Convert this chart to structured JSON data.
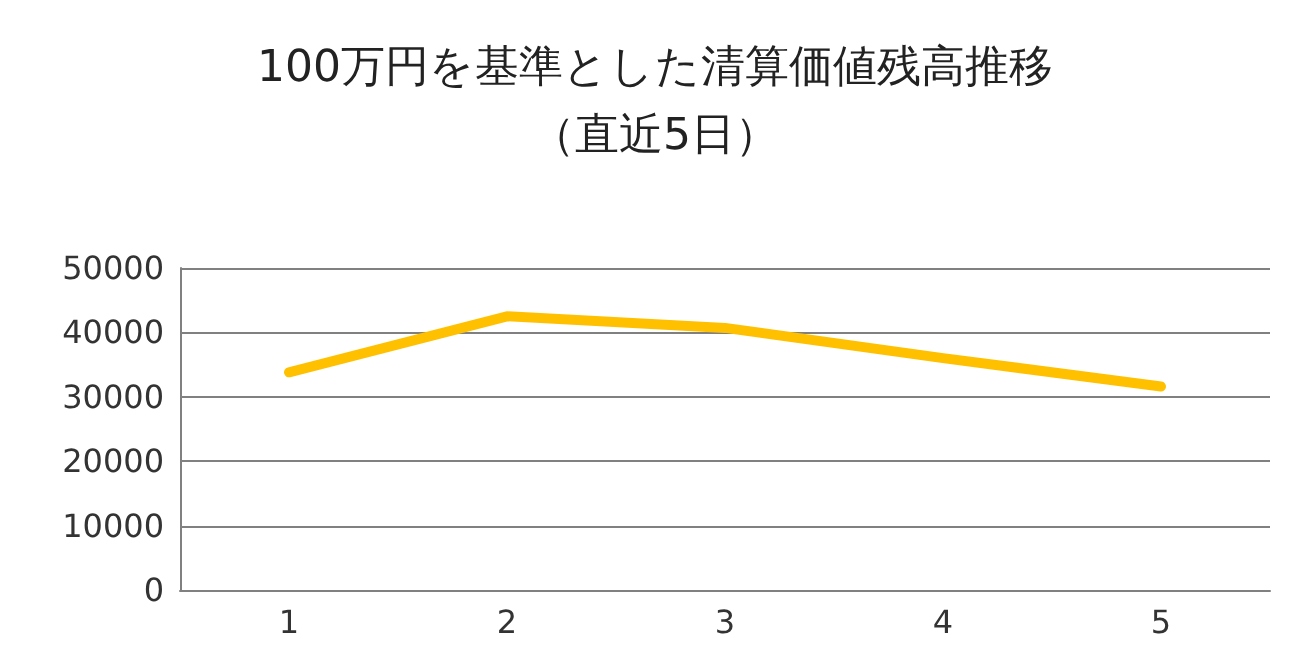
{
  "chart_data": {
    "type": "line",
    "title": "100万円を基準とした清算価値残高推移",
    "subtitle": "（直近5日）",
    "categories": [
      "1",
      "2",
      "3",
      "4",
      "5"
    ],
    "series": [
      {
        "color": "#ffc000",
        "values": [
          33800,
          42500,
          40700,
          36000,
          31600
        ]
      }
    ],
    "ylim": [
      0,
      50000
    ],
    "yticks": [
      0,
      10000,
      20000,
      30000,
      40000,
      50000
    ],
    "grid": "y",
    "marker": "none",
    "line_style": "solid"
  }
}
